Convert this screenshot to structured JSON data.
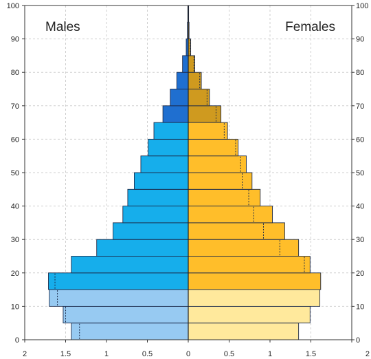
{
  "chart_data": {
    "type": "bar",
    "subtype": "population-pyramid",
    "title": "",
    "xlabel": "",
    "ylabel": "",
    "left_label": "Males",
    "right_label": "Females",
    "xlim": [
      -2,
      2
    ],
    "ylim": [
      0,
      100
    ],
    "x_ticks": [
      "2",
      "1.5",
      "1",
      "0.5",
      "0",
      "0.5",
      "1",
      "1.5",
      "2"
    ],
    "y_ticks": [
      "0",
      "10",
      "20",
      "30",
      "40",
      "50",
      "60",
      "70",
      "80",
      "90",
      "100"
    ],
    "grid": true,
    "age_group_width": 5,
    "age_groups": [
      "0-4",
      "5-9",
      "10-14",
      "15-19",
      "20-24",
      "25-29",
      "30-34",
      "35-39",
      "40-44",
      "45-49",
      "50-54",
      "55-59",
      "60-64",
      "65-69",
      "70-74",
      "75-79",
      "80-84",
      "85-89",
      "90-94",
      "95-99"
    ],
    "series": [
      {
        "name": "Males",
        "values": [
          1.43,
          1.53,
          1.7,
          1.71,
          1.43,
          1.12,
          0.92,
          0.8,
          0.74,
          0.66,
          0.58,
          0.49,
          0.42,
          0.31,
          0.22,
          0.14,
          0.07,
          0.025,
          0.01,
          0.005
        ],
        "reference_values": [
          1.33,
          1.5,
          1.6,
          1.63,
          null,
          null,
          null,
          null,
          null,
          null,
          null,
          null,
          null,
          null,
          null,
          null,
          null,
          null,
          null,
          null
        ]
      },
      {
        "name": "Females",
        "values": [
          1.35,
          1.49,
          1.61,
          1.62,
          1.49,
          1.35,
          1.18,
          1.03,
          0.88,
          0.78,
          0.71,
          0.61,
          0.48,
          0.4,
          0.26,
          0.16,
          0.08,
          0.03,
          0.01,
          0.005
        ],
        "reference_values": [
          null,
          null,
          null,
          null,
          1.42,
          1.12,
          0.92,
          0.8,
          0.74,
          0.66,
          0.64,
          0.58,
          0.44,
          0.34,
          0.23,
          0.14,
          0.07,
          0.025,
          null,
          null
        ]
      }
    ],
    "colors": {
      "male_young": "#97caf2",
      "male_working": "#16aeeb",
      "male_old": "#1f6fd0",
      "female_young": "#ffe99c",
      "female_working": "#ffbe2a",
      "female_old": "#cf9a1f",
      "bar_outline": "#1b2a4a",
      "grid": "#cfcfcf"
    }
  }
}
